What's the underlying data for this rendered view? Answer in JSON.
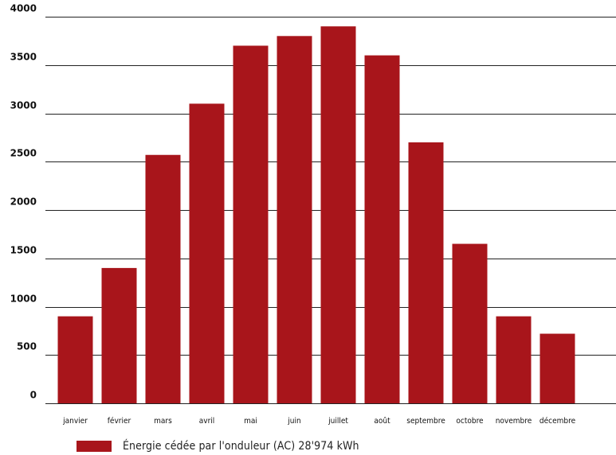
{
  "chart_data": {
    "type": "bar",
    "categories": [
      "janvier",
      "février",
      "mars",
      "avril",
      "mai",
      "juin",
      "juillet",
      "août",
      "septembre",
      "octobre",
      "novembre",
      "décembre"
    ],
    "series": [
      {
        "name": "Énergie cédée par l'onduleur (AC) 28'974 kWh",
        "values": [
          900,
          1400,
          2570,
          3100,
          3700,
          3800,
          3900,
          3600,
          2700,
          1650,
          900,
          720
        ],
        "color": "#a8151b"
      }
    ],
    "ylim": [
      0,
      4000
    ],
    "yticks": [
      0,
      500,
      1000,
      1500,
      2000,
      2500,
      3000,
      3500,
      4000
    ],
    "grid": true,
    "legend_position": "bottom-left"
  },
  "legend": {
    "label": "Énergie cédée par l'onduleur (AC) 28'974 kWh",
    "color": "#a8151b"
  }
}
